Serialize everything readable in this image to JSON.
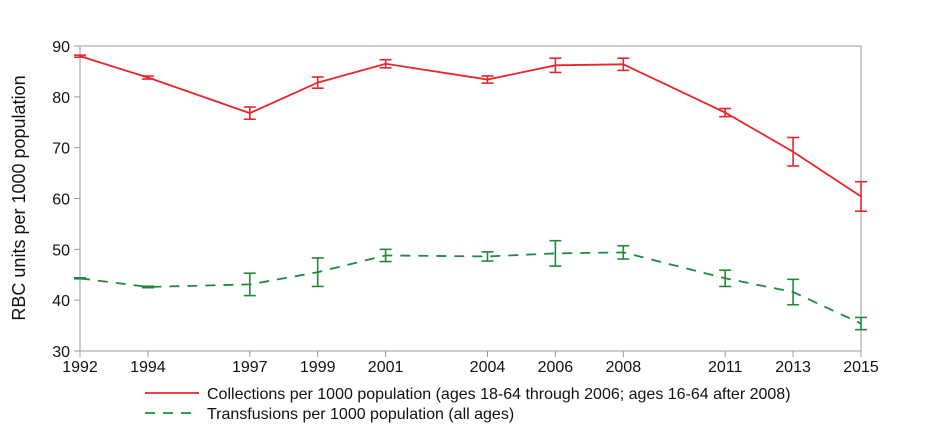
{
  "chart_data": {
    "type": "line",
    "title": "",
    "xlabel": "",
    "ylabel": "RBC units per 1000 population",
    "x": [
      1992,
      1994,
      1997,
      1999,
      2001,
      2004,
      2006,
      2008,
      2011,
      2013,
      2015
    ],
    "x_ticks": [
      "1992",
      "1994",
      "1997",
      "1999",
      "2001",
      "2004",
      "2006",
      "2008",
      "2011",
      "2013",
      "2015"
    ],
    "y_ticks": [
      "30",
      "40",
      "50",
      "60",
      "70",
      "80",
      "90"
    ],
    "xlim": [
      1992,
      2015
    ],
    "ylim": [
      30,
      90
    ],
    "grid": false,
    "legend_position": "bottom",
    "series": [
      {
        "name": "Collections per 1000 population (ages 18-64 through 2006; ages 16-64 after 2008)",
        "color": "#e8262a",
        "line_style": "solid",
        "values": [
          88.0,
          83.8,
          76.8,
          82.8,
          86.5,
          83.4,
          86.2,
          86.4,
          76.9,
          69.2,
          60.4
        ],
        "error": [
          0.2,
          0.3,
          1.2,
          1.1,
          0.8,
          0.7,
          1.4,
          1.2,
          0.8,
          2.8,
          2.9
        ]
      },
      {
        "name": "Transfusions per 1000 population (all ages)",
        "color": "#1f8a3a",
        "line_style": "dashed",
        "values": [
          44.3,
          42.6,
          43.1,
          45.5,
          48.8,
          48.6,
          49.2,
          49.4,
          44.3,
          41.6,
          35.4
        ],
        "error": [
          0.1,
          0.15,
          2.2,
          2.8,
          1.2,
          0.9,
          2.5,
          1.3,
          1.6,
          2.5,
          1.2
        ]
      }
    ]
  }
}
